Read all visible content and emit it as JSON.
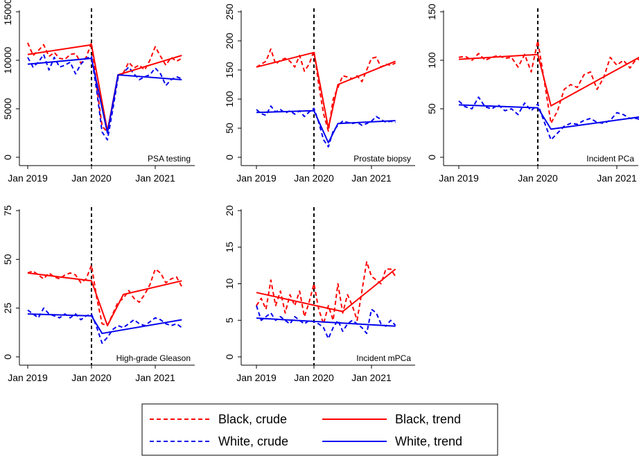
{
  "chart_data": [
    {
      "type": "line",
      "title": "PSA testing",
      "ylim": [
        0,
        15000
      ],
      "yticks": [
        0,
        5000,
        10000,
        15000
      ],
      "xticks": [
        "Jan 2019",
        "Jan 2020",
        "Jan 2021"
      ],
      "xlim_months": [
        0,
        29
      ],
      "vline_at": "Jan 2020",
      "series": [
        {
          "name": "Black, crude",
          "key": "black_crude",
          "x": [
            0,
            1,
            2,
            3,
            4,
            5,
            6,
            7,
            8,
            9,
            10,
            11,
            12,
            13,
            14,
            15,
            16,
            17,
            18,
            19,
            20,
            21,
            22,
            23,
            24,
            25,
            26,
            27,
            28,
            29
          ],
          "values": [
            11800,
            10500,
            11000,
            11600,
            10400,
            10800,
            10200,
            10100,
            10600,
            10700,
            9700,
            10300,
            11800,
            7200,
            3200,
            2600,
            5400,
            8400,
            8700,
            9800,
            9200,
            9500,
            9000,
            10000,
            11400,
            10400,
            9500,
            10300,
            9900,
            10200
          ]
        },
        {
          "name": "White, crude",
          "key": "white_crude",
          "x": [
            0,
            1,
            2,
            3,
            4,
            5,
            6,
            7,
            8,
            9,
            10,
            11,
            12,
            13,
            14,
            15,
            16,
            17,
            18,
            19,
            20,
            21,
            22,
            23,
            24,
            25,
            26,
            27,
            28,
            29
          ],
          "values": [
            10300,
            9300,
            9800,
            10600,
            9000,
            10300,
            9300,
            9500,
            9800,
            8600,
            9600,
            10200,
            10400,
            6800,
            2600,
            1800,
            4900,
            8200,
            8700,
            9300,
            8600,
            8000,
            8300,
            8500,
            9200,
            8600,
            7400,
            8000,
            8300,
            8100
          ]
        },
        {
          "name": "Black, trend",
          "key": "black_trend",
          "x": [
            0,
            12,
            15,
            17,
            29
          ],
          "values": [
            10600,
            11600,
            2700,
            8500,
            10500
          ]
        },
        {
          "name": "White, trend",
          "key": "white_trend",
          "x": [
            0,
            12,
            15,
            17,
            29
          ],
          "values": [
            9600,
            10200,
            2500,
            8500,
            8000
          ]
        }
      ]
    },
    {
      "type": "line",
      "title": "Prostate biopsy",
      "ylim": [
        0,
        250
      ],
      "yticks": [
        0,
        50,
        100,
        150,
        200,
        250
      ],
      "xticks": [
        "Jan 2019",
        "Jan 2020",
        "Jan 2021"
      ],
      "xlim_months": [
        0,
        29
      ],
      "vline_at": "Jan 2020",
      "series": [
        {
          "name": "Black, crude",
          "key": "black_crude",
          "x": [
            0,
            1,
            2,
            3,
            4,
            5,
            6,
            7,
            8,
            9,
            10,
            11,
            12,
            13,
            14,
            15,
            16,
            17,
            18,
            19,
            20,
            21,
            22,
            23,
            24,
            25,
            26,
            27,
            28,
            29
          ],
          "values": [
            155,
            160,
            165,
            186,
            160,
            167,
            170,
            165,
            155,
            175,
            148,
            160,
            183,
            125,
            75,
            45,
            100,
            120,
            140,
            138,
            135,
            140,
            130,
            150,
            170,
            172,
            155,
            160,
            158,
            162
          ]
        },
        {
          "name": "White, crude",
          "key": "white_crude",
          "x": [
            0,
            1,
            2,
            3,
            4,
            5,
            6,
            7,
            8,
            9,
            10,
            11,
            12,
            13,
            14,
            15,
            16,
            17,
            18,
            19,
            20,
            21,
            22,
            23,
            24,
            25,
            26,
            27,
            28,
            29
          ],
          "values": [
            82,
            75,
            72,
            88,
            78,
            82,
            76,
            80,
            74,
            80,
            70,
            78,
            84,
            60,
            30,
            18,
            45,
            55,
            62,
            60,
            58,
            60,
            55,
            58,
            62,
            70,
            65,
            60,
            62,
            60
          ]
        },
        {
          "name": "Black, trend",
          "key": "black_trend",
          "x": [
            0,
            12,
            15,
            17,
            29
          ],
          "values": [
            155,
            180,
            50,
            125,
            165
          ]
        },
        {
          "name": "White, trend",
          "key": "white_trend",
          "x": [
            0,
            12,
            15,
            17,
            29
          ],
          "values": [
            77,
            80,
            25,
            58,
            63
          ]
        }
      ]
    },
    {
      "type": "line",
      "title": "Incident PCa",
      "ylim": [
        0,
        150
      ],
      "yticks": [
        0,
        50,
        100,
        150
      ],
      "xticks": [
        "Jan 2019",
        "Jan 2020",
        "Jan 2021"
      ],
      "xlim_months": [
        0,
        29
      ],
      "vline_at": "Jan 2020",
      "series": [
        {
          "name": "Black, crude",
          "key": "black_crude",
          "x": [
            0,
            1,
            2,
            3,
            4,
            5,
            6,
            7,
            8,
            9,
            10,
            11,
            12,
            13,
            14,
            15,
            16,
            17,
            18,
            19,
            20,
            21,
            22,
            23,
            24,
            25,
            26,
            27,
            28,
            29
          ],
          "values": [
            103,
            104,
            100,
            107,
            100,
            103,
            105,
            102,
            103,
            93,
            106,
            88,
            120,
            78,
            35,
            48,
            70,
            75,
            72,
            85,
            88,
            70,
            82,
            103,
            95,
            100,
            92,
            102,
            98,
            88
          ]
        },
        {
          "name": "White, crude",
          "key": "white_crude",
          "x": [
            0,
            1,
            2,
            3,
            4,
            5,
            6,
            7,
            8,
            9,
            10,
            11,
            12,
            13,
            14,
            15,
            16,
            17,
            18,
            19,
            20,
            21,
            22,
            23,
            24,
            25,
            26,
            27,
            28,
            29
          ],
          "values": [
            58,
            52,
            50,
            62,
            52,
            50,
            54,
            48,
            50,
            44,
            56,
            48,
            55,
            36,
            18,
            25,
            32,
            35,
            34,
            38,
            40,
            36,
            35,
            38,
            46,
            44,
            40,
            40,
            38,
            36
          ]
        },
        {
          "name": "Black, trend",
          "key": "black_trend",
          "x": [
            0,
            12,
            14,
            29
          ],
          "values": [
            101,
            106,
            53,
            109
          ]
        },
        {
          "name": "White, trend",
          "key": "white_trend",
          "x": [
            0,
            12,
            14,
            29
          ],
          "values": [
            54,
            51,
            29,
            43
          ]
        }
      ]
    },
    {
      "type": "line",
      "title": "High-grade Gleason",
      "ylim": [
        0,
        75
      ],
      "yticks": [
        0,
        25,
        50,
        75
      ],
      "xticks": [
        "Jan 2019",
        "Jan 2020",
        "Jan 2021"
      ],
      "xlim_months": [
        0,
        29
      ],
      "vline_at": "Jan 2020",
      "series": [
        {
          "name": "Black, crude",
          "key": "black_crude",
          "x": [
            0,
            1,
            2,
            3,
            4,
            5,
            6,
            7,
            8,
            9,
            10,
            11,
            12,
            13,
            14,
            15,
            16,
            17,
            18,
            19,
            20,
            21,
            22,
            23,
            24,
            25,
            26,
            27,
            28,
            29
          ],
          "values": [
            43,
            44,
            42,
            40,
            43,
            41,
            40,
            42,
            43,
            42,
            38,
            40,
            47,
            30,
            17,
            16,
            22,
            28,
            30,
            34,
            30,
            28,
            32,
            37,
            45,
            43,
            38,
            40,
            41,
            36
          ]
        },
        {
          "name": "White, crude",
          "key": "white_crude",
          "x": [
            0,
            1,
            2,
            3,
            4,
            5,
            6,
            7,
            8,
            9,
            10,
            11,
            12,
            13,
            14,
            15,
            16,
            17,
            18,
            19,
            20,
            21,
            22,
            23,
            24,
            25,
            26,
            27,
            28,
            29
          ],
          "values": [
            24,
            22,
            20,
            25,
            22,
            21,
            20,
            22,
            20,
            22,
            19,
            21,
            22,
            15,
            7,
            10,
            14,
            16,
            15,
            17,
            19,
            17,
            16,
            18,
            20,
            19,
            17,
            16,
            17,
            15
          ]
        },
        {
          "name": "Black, trend",
          "key": "black_trend",
          "x": [
            0,
            12,
            15,
            18,
            29
          ],
          "values": [
            43,
            39,
            16,
            32,
            39
          ]
        },
        {
          "name": "White, trend",
          "key": "white_trend",
          "x": [
            0,
            12,
            14,
            29
          ],
          "values": [
            22,
            21,
            12,
            19
          ]
        }
      ]
    },
    {
      "type": "line",
      "title": "Incident mPCa",
      "ylim": [
        0,
        20
      ],
      "yticks": [
        0,
        5,
        10,
        15,
        20
      ],
      "xticks": [
        "Jan 2019",
        "Jan 2020",
        "Jan 2021"
      ],
      "xlim_months": [
        0,
        29
      ],
      "vline_at": "Jan 2020",
      "series": [
        {
          "name": "Black, crude",
          "key": "black_crude",
          "x": [
            0,
            1,
            2,
            3,
            4,
            5,
            6,
            7,
            8,
            9,
            10,
            11,
            12,
            13,
            14,
            15,
            16,
            17,
            18,
            19,
            20,
            21,
            22,
            23,
            24,
            25,
            26,
            27,
            28,
            29
          ],
          "values": [
            7,
            8,
            6.5,
            10.5,
            7,
            9,
            6,
            8.5,
            7,
            9,
            5.5,
            7.5,
            10,
            6.5,
            4.5,
            7,
            5,
            10,
            6,
            8.5,
            7,
            5,
            9,
            13,
            11,
            10.5,
            10,
            12,
            12,
            11
          ]
        },
        {
          "name": "White, crude",
          "key": "white_crude",
          "x": [
            0,
            1,
            2,
            3,
            4,
            5,
            6,
            7,
            8,
            9,
            10,
            11,
            12,
            13,
            14,
            15,
            16,
            17,
            18,
            19,
            20,
            21,
            22,
            23,
            24,
            25,
            26,
            27,
            28,
            29
          ],
          "values": [
            7,
            5,
            5.5,
            6,
            5,
            5.5,
            5,
            4.5,
            5.5,
            5,
            4.5,
            5,
            4.8,
            4.5,
            4,
            2.5,
            4,
            5,
            3.5,
            4.5,
            5,
            4.5,
            4,
            3.2,
            6.5,
            6,
            4.5,
            4.2,
            5,
            4.3
          ]
        },
        {
          "name": "Black, trend",
          "key": "black_trend",
          "x": [
            0,
            18,
            29
          ],
          "values": [
            8.8,
            6.2,
            12
          ]
        },
        {
          "name": "White, trend",
          "key": "white_trend",
          "x": [
            0,
            29
          ],
          "values": [
            5.3,
            4.2
          ]
        }
      ]
    }
  ],
  "legend": {
    "items": [
      {
        "label": "Black, crude",
        "key": "black_crude"
      },
      {
        "label": "Black, trend",
        "key": "black_trend"
      },
      {
        "label": "White, crude",
        "key": "white_crude"
      },
      {
        "label": "White, trend",
        "key": "white_trend"
      }
    ]
  },
  "colors": {
    "black_crude": "#ff0000",
    "black_trend": "#ff0000",
    "white_crude": "#0000ee",
    "white_trend": "#0000ee",
    "axis": "#000000"
  }
}
